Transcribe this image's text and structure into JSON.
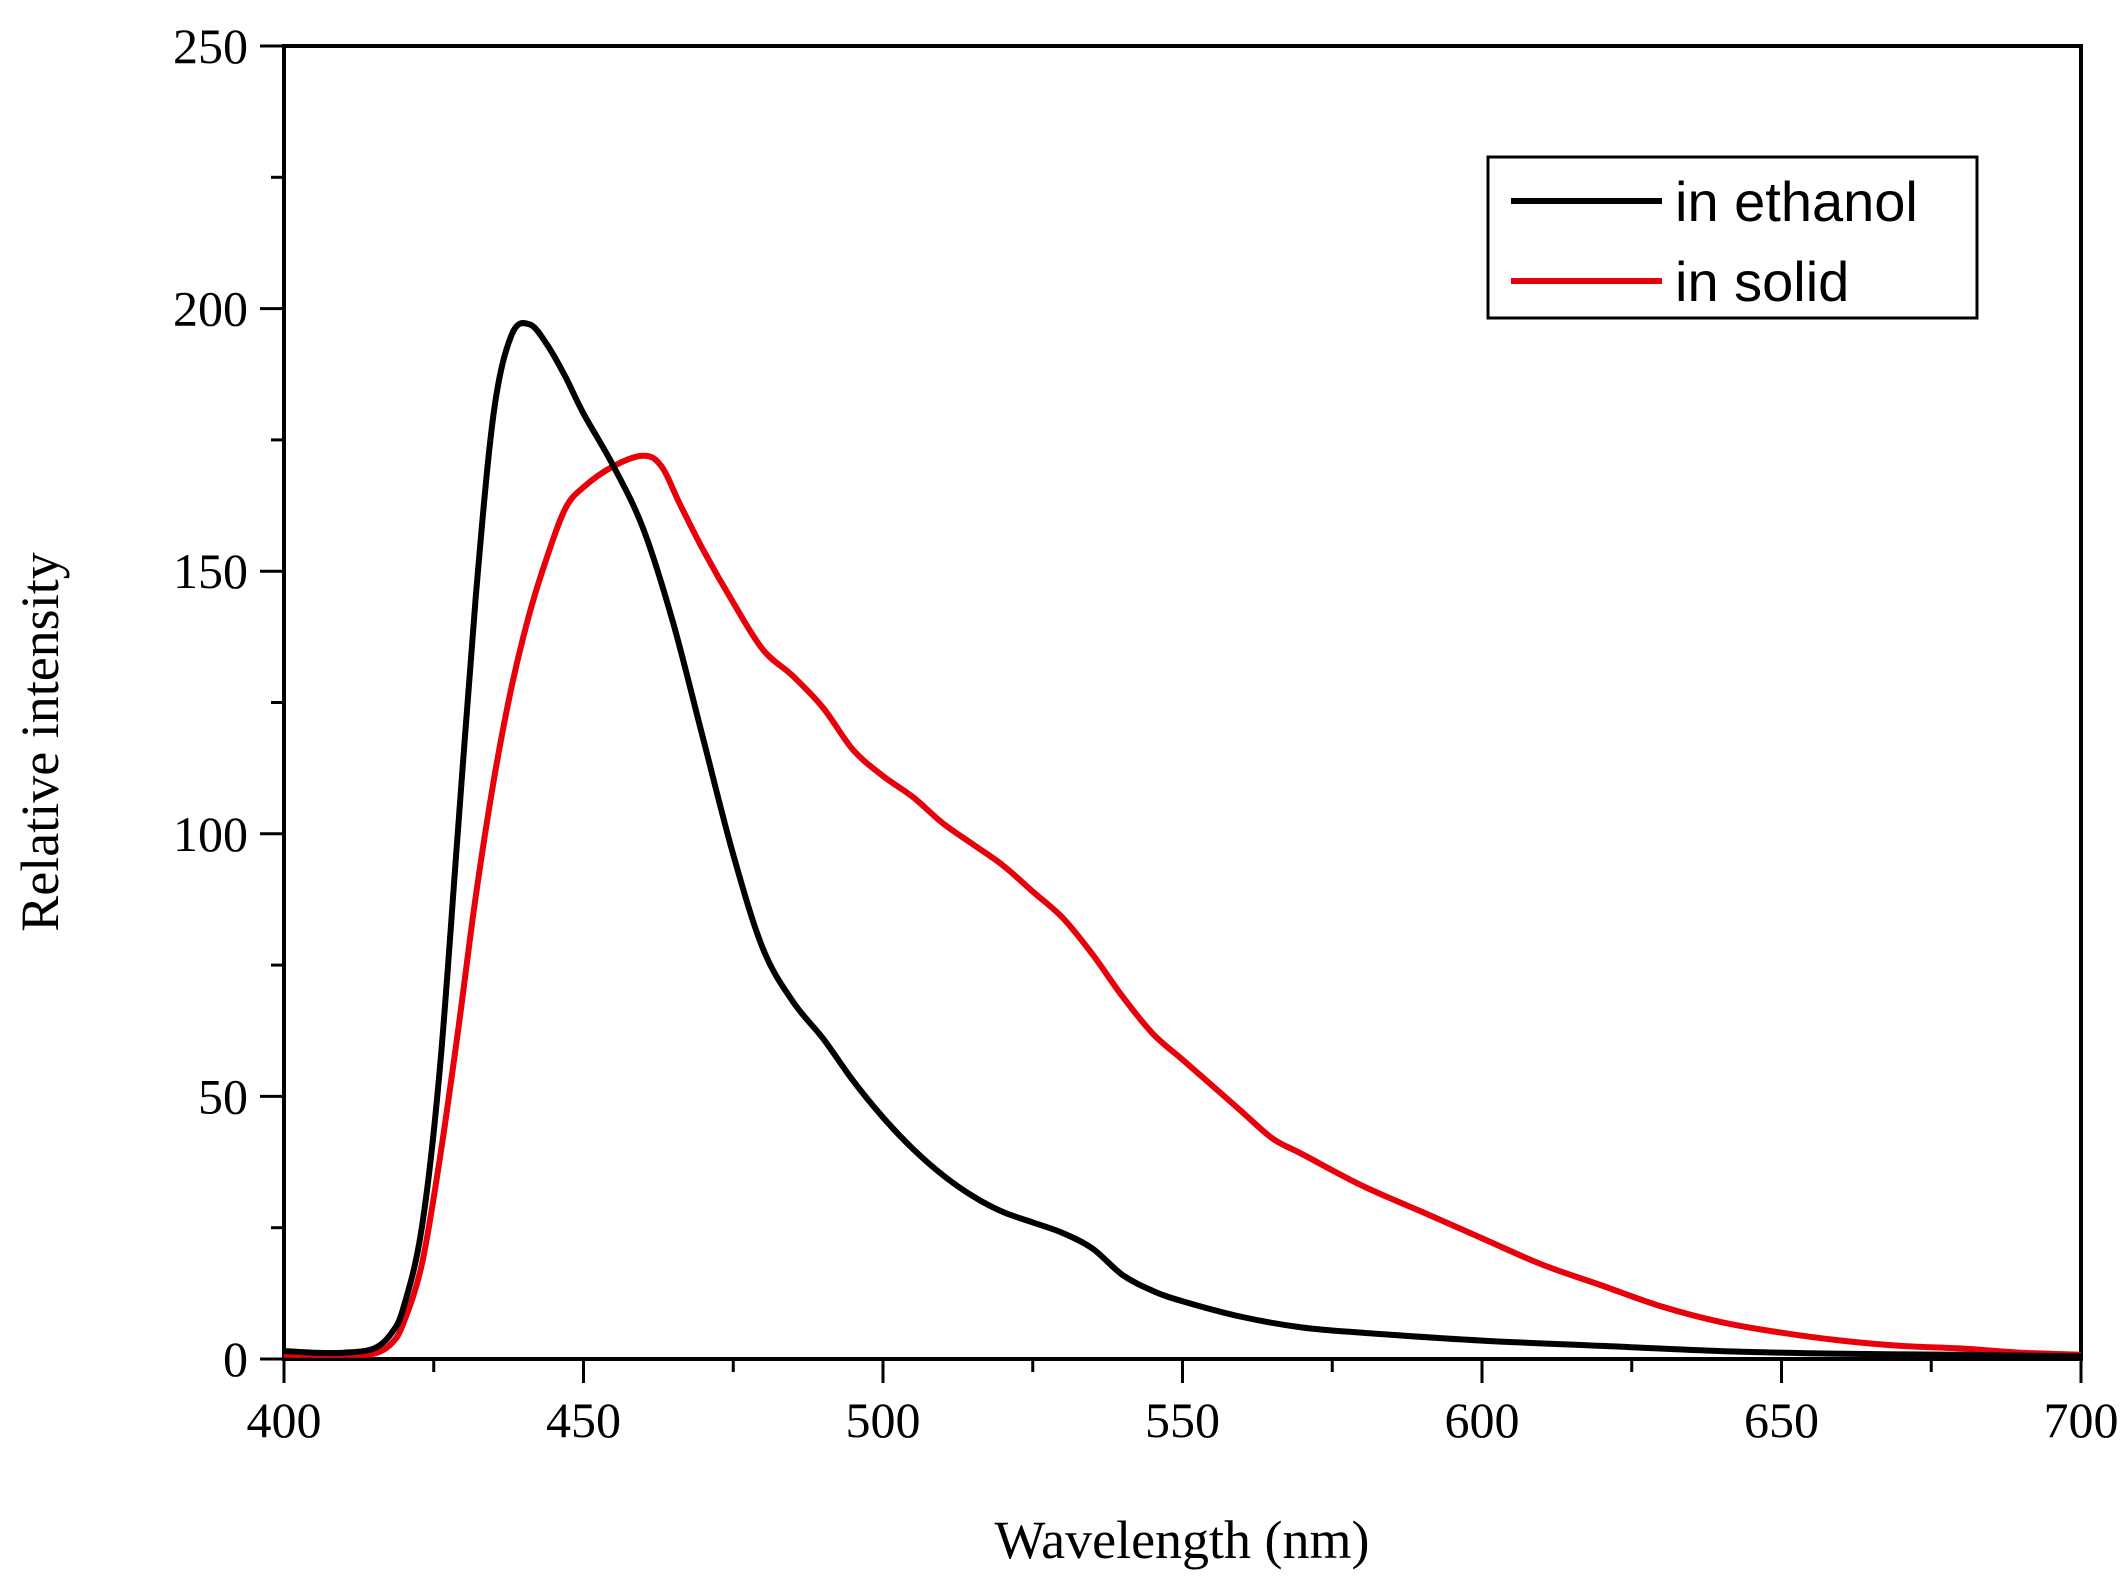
{
  "chart_data": {
    "type": "line",
    "title": "",
    "xlabel": "Wavelength (nm)",
    "ylabel": "Relative intensity",
    "xlim": [
      400,
      700
    ],
    "ylim": [
      0,
      250
    ],
    "xticks": [
      400,
      450,
      500,
      550,
      600,
      650,
      700
    ],
    "yticks": [
      0,
      50,
      100,
      150,
      200,
      250
    ],
    "xtick_labels": [
      "400",
      "450",
      "500",
      "550",
      "600",
      "650",
      "700"
    ],
    "ytick_labels": [
      "0",
      "50",
      "100",
      "150",
      "200",
      "250"
    ],
    "legend_position": "top-right",
    "series": [
      {
        "name": "in ethanol",
        "color": "#000000",
        "points": [
          [
            400,
            1.5
          ],
          [
            405,
            1.2
          ],
          [
            410,
            1.2
          ],
          [
            415,
            2
          ],
          [
            418,
            5
          ],
          [
            420,
            10
          ],
          [
            423,
            25
          ],
          [
            426,
            55
          ],
          [
            429,
            100
          ],
          [
            432,
            145
          ],
          [
            435,
            180
          ],
          [
            438,
            195
          ],
          [
            441,
            197
          ],
          [
            444,
            193
          ],
          [
            447,
            187
          ],
          [
            450,
            180
          ],
          [
            455,
            170
          ],
          [
            460,
            158
          ],
          [
            465,
            140
          ],
          [
            470,
            118
          ],
          [
            475,
            96
          ],
          [
            480,
            78
          ],
          [
            485,
            68
          ],
          [
            490,
            61
          ],
          [
            495,
            53
          ],
          [
            500,
            46
          ],
          [
            505,
            40
          ],
          [
            510,
            35
          ],
          [
            515,
            31
          ],
          [
            520,
            28
          ],
          [
            525,
            26
          ],
          [
            530,
            24
          ],
          [
            535,
            21
          ],
          [
            540,
            16
          ],
          [
            545,
            13
          ],
          [
            550,
            11
          ],
          [
            560,
            8
          ],
          [
            570,
            6
          ],
          [
            580,
            5
          ],
          [
            600,
            3.5
          ],
          [
            620,
            2.5
          ],
          [
            640,
            1.5
          ],
          [
            660,
            1
          ],
          [
            680,
            0.8
          ],
          [
            700,
            0.5
          ]
        ]
      },
      {
        "name": "in solid",
        "color": "#e8000b",
        "points": [
          [
            400,
            0.8
          ],
          [
            410,
            0.8
          ],
          [
            415,
            1
          ],
          [
            418,
            3
          ],
          [
            420,
            7
          ],
          [
            423,
            18
          ],
          [
            426,
            38
          ],
          [
            429,
            62
          ],
          [
            432,
            88
          ],
          [
            435,
            110
          ],
          [
            438,
            128
          ],
          [
            441,
            142
          ],
          [
            444,
            153
          ],
          [
            447,
            162
          ],
          [
            450,
            166
          ],
          [
            455,
            170
          ],
          [
            460,
            172
          ],
          [
            463,
            170
          ],
          [
            466,
            163
          ],
          [
            470,
            154
          ],
          [
            475,
            144
          ],
          [
            480,
            135
          ],
          [
            485,
            130
          ],
          [
            490,
            124
          ],
          [
            495,
            116
          ],
          [
            500,
            111
          ],
          [
            505,
            107
          ],
          [
            510,
            102
          ],
          [
            515,
            98
          ],
          [
            520,
            94
          ],
          [
            525,
            89
          ],
          [
            530,
            84
          ],
          [
            535,
            77
          ],
          [
            540,
            69
          ],
          [
            545,
            62
          ],
          [
            550,
            57
          ],
          [
            555,
            52
          ],
          [
            560,
            47
          ],
          [
            565,
            42
          ],
          [
            570,
            39
          ],
          [
            580,
            33
          ],
          [
            590,
            28
          ],
          [
            600,
            23
          ],
          [
            610,
            18
          ],
          [
            620,
            14
          ],
          [
            630,
            10
          ],
          [
            640,
            7
          ],
          [
            650,
            5
          ],
          [
            660,
            3.5
          ],
          [
            670,
            2.5
          ],
          [
            680,
            2
          ],
          [
            690,
            1.2
          ],
          [
            700,
            0.8
          ]
        ]
      }
    ]
  }
}
